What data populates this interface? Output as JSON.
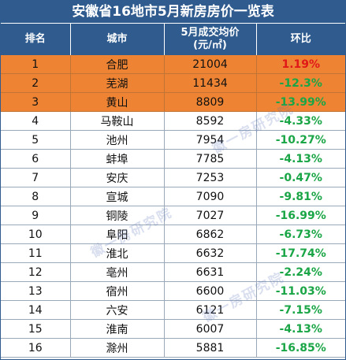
{
  "title": "安徽省16地市5月新房房价一览表",
  "headers": {
    "rank": "排名",
    "city": "城市",
    "price_line1": "5月成交均价",
    "price_line2": "(元/㎡)",
    "change": "环比"
  },
  "watermark": "徽一房研究院",
  "colors": {
    "header_bg": "#2f5b8f",
    "highlight_bg": "#ee8433",
    "positive": "#e01818",
    "negative": "#1aa546"
  },
  "rows": [
    {
      "rank": "1",
      "city": "合肥",
      "price": "21004",
      "change": "1.19%",
      "highlight": true,
      "direction": "up"
    },
    {
      "rank": "2",
      "city": "芜湖",
      "price": "11434",
      "change": "-12.3%",
      "highlight": true,
      "direction": "down"
    },
    {
      "rank": "3",
      "city": "黄山",
      "price": "8809",
      "change": "-13.99%",
      "highlight": true,
      "direction": "down"
    },
    {
      "rank": "4",
      "city": "马鞍山",
      "price": "8592",
      "change": "-4.33%",
      "highlight": false,
      "direction": "down"
    },
    {
      "rank": "5",
      "city": "池州",
      "price": "7954",
      "change": "-10.27%",
      "highlight": false,
      "direction": "down"
    },
    {
      "rank": "6",
      "city": "蚌埠",
      "price": "7785",
      "change": "-4.13%",
      "highlight": false,
      "direction": "down"
    },
    {
      "rank": "7",
      "city": "安庆",
      "price": "7253",
      "change": "-0.47%",
      "highlight": false,
      "direction": "down"
    },
    {
      "rank": "8",
      "city": "宣城",
      "price": "7090",
      "change": "-9.81%",
      "highlight": false,
      "direction": "down"
    },
    {
      "rank": "9",
      "city": "铜陵",
      "price": "7027",
      "change": "-16.99%",
      "highlight": false,
      "direction": "down"
    },
    {
      "rank": "10",
      "city": "阜阳",
      "price": "6862",
      "change": "-6.73%",
      "highlight": false,
      "direction": "down"
    },
    {
      "rank": "11",
      "city": "淮北",
      "price": "6632",
      "change": "-17.74%",
      "highlight": false,
      "direction": "down"
    },
    {
      "rank": "12",
      "city": "亳州",
      "price": "6631",
      "change": "-2.24%",
      "highlight": false,
      "direction": "down"
    },
    {
      "rank": "13",
      "city": "宿州",
      "price": "6600",
      "change": "-11.03%",
      "highlight": false,
      "direction": "down"
    },
    {
      "rank": "14",
      "city": "六安",
      "price": "6121",
      "change": "-7.15%",
      "highlight": false,
      "direction": "down"
    },
    {
      "rank": "15",
      "city": "淮南",
      "price": "6007",
      "change": "-4.13%",
      "highlight": false,
      "direction": "down"
    },
    {
      "rank": "16",
      "city": "滁州",
      "price": "5881",
      "change": "-16.85%",
      "highlight": false,
      "direction": "down"
    }
  ]
}
